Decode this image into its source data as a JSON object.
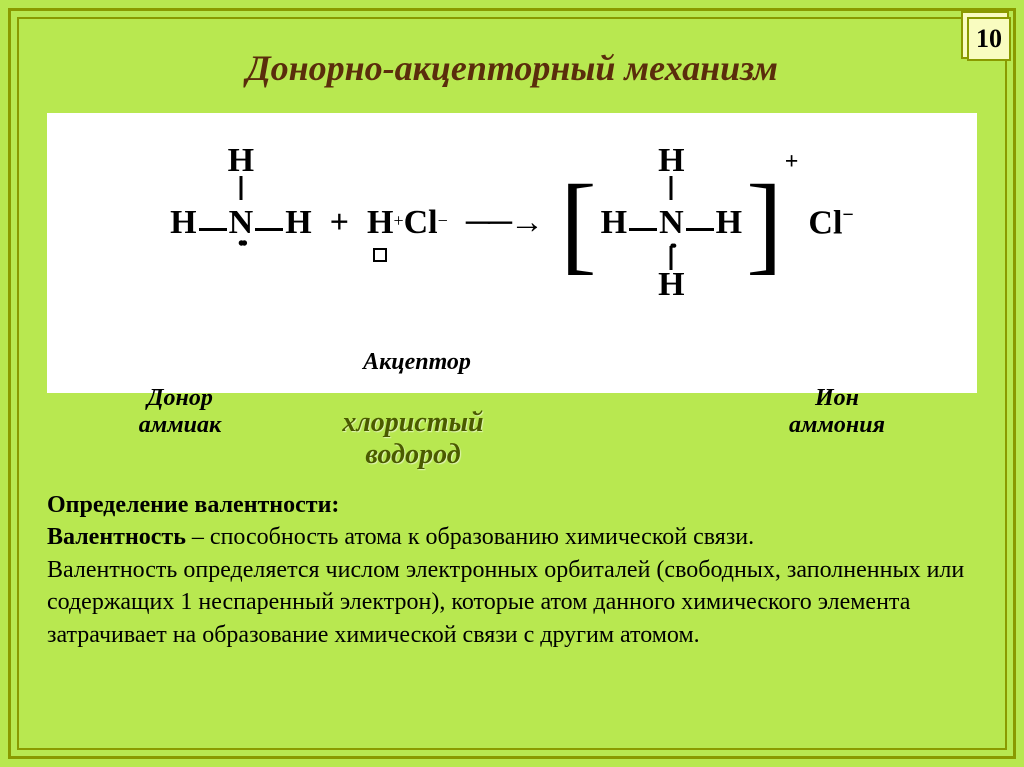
{
  "page_number": "10",
  "title": "Донорно-акцепторный механизм",
  "colors": {
    "slide_bg": "#b8e850",
    "border": "#8a9a00",
    "title_color": "#5a2d0c",
    "diagram_bg": "#ffffff",
    "text": "#000000",
    "hcl_label_color": "#4a5a00"
  },
  "diagram": {
    "donor": {
      "line1": "Донор",
      "line2": "аммиак"
    },
    "acceptor": {
      "line1": "Акцептор"
    },
    "hcl_label": {
      "line1": "хлористый",
      "line2": "водород"
    },
    "ion": {
      "line1": "Ион",
      "line2": "аммония"
    },
    "atoms": {
      "H": "H",
      "N": "N",
      "Cl": "Cl",
      "plus": "+",
      "minus": "−"
    },
    "arrow": "───→"
  },
  "definition": {
    "heading": "Определение валентности:",
    "term": "Валентность",
    "body1": " – способность атома к образованию химической связи.",
    "body2": "Валентность определяется числом электронных орбиталей (свободных, заполненных или содержащих 1 неспаренный электрон), которые атом данного химического элемента затрачивает на образование химической связи с другим атомом."
  }
}
